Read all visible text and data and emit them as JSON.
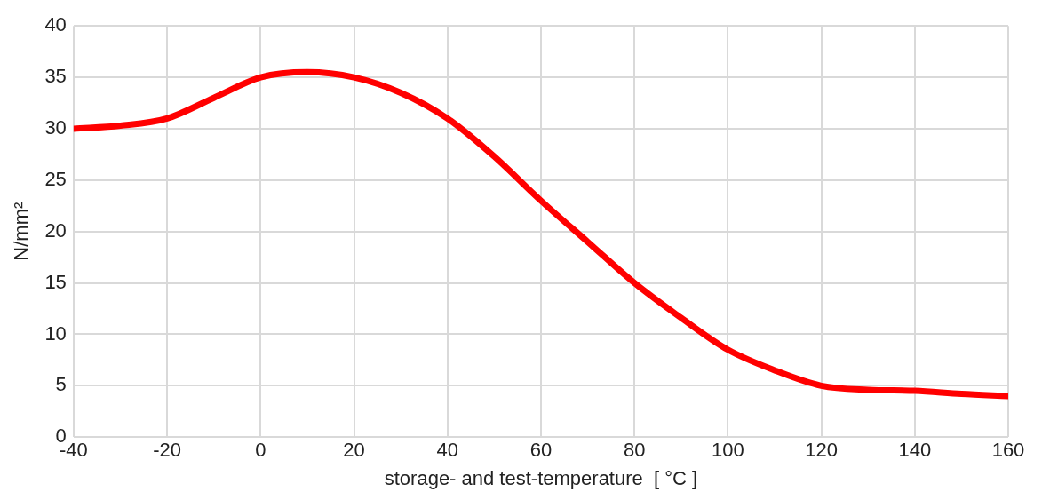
{
  "chart_data": {
    "type": "line",
    "xlabel": "storage- and test-temperature  [ °C ]",
    "ylabel": "N/mm²",
    "x": [
      -40,
      -30,
      -20,
      -10,
      0,
      10,
      20,
      30,
      40,
      50,
      60,
      70,
      80,
      90,
      100,
      110,
      120,
      130,
      140,
      150,
      160
    ],
    "series": [
      {
        "color": "#ff0000",
        "values": [
          30,
          30.3,
          31,
          33,
          35,
          35.5,
          35,
          33.5,
          31,
          27.3,
          23,
          19,
          15,
          11.6,
          8.5,
          6.5,
          5,
          4.6,
          4.5,
          4.2,
          4
        ]
      }
    ],
    "xlim": [
      -40,
      160
    ],
    "xticks": [
      -40,
      -20,
      0,
      20,
      40,
      60,
      80,
      100,
      120,
      140,
      160
    ],
    "ylim": [
      0,
      40
    ],
    "yticks": [
      0,
      5,
      10,
      15,
      20,
      25,
      30,
      35,
      40
    ],
    "grid": true,
    "legend": false,
    "marker": "none",
    "line_style": "solid"
  }
}
